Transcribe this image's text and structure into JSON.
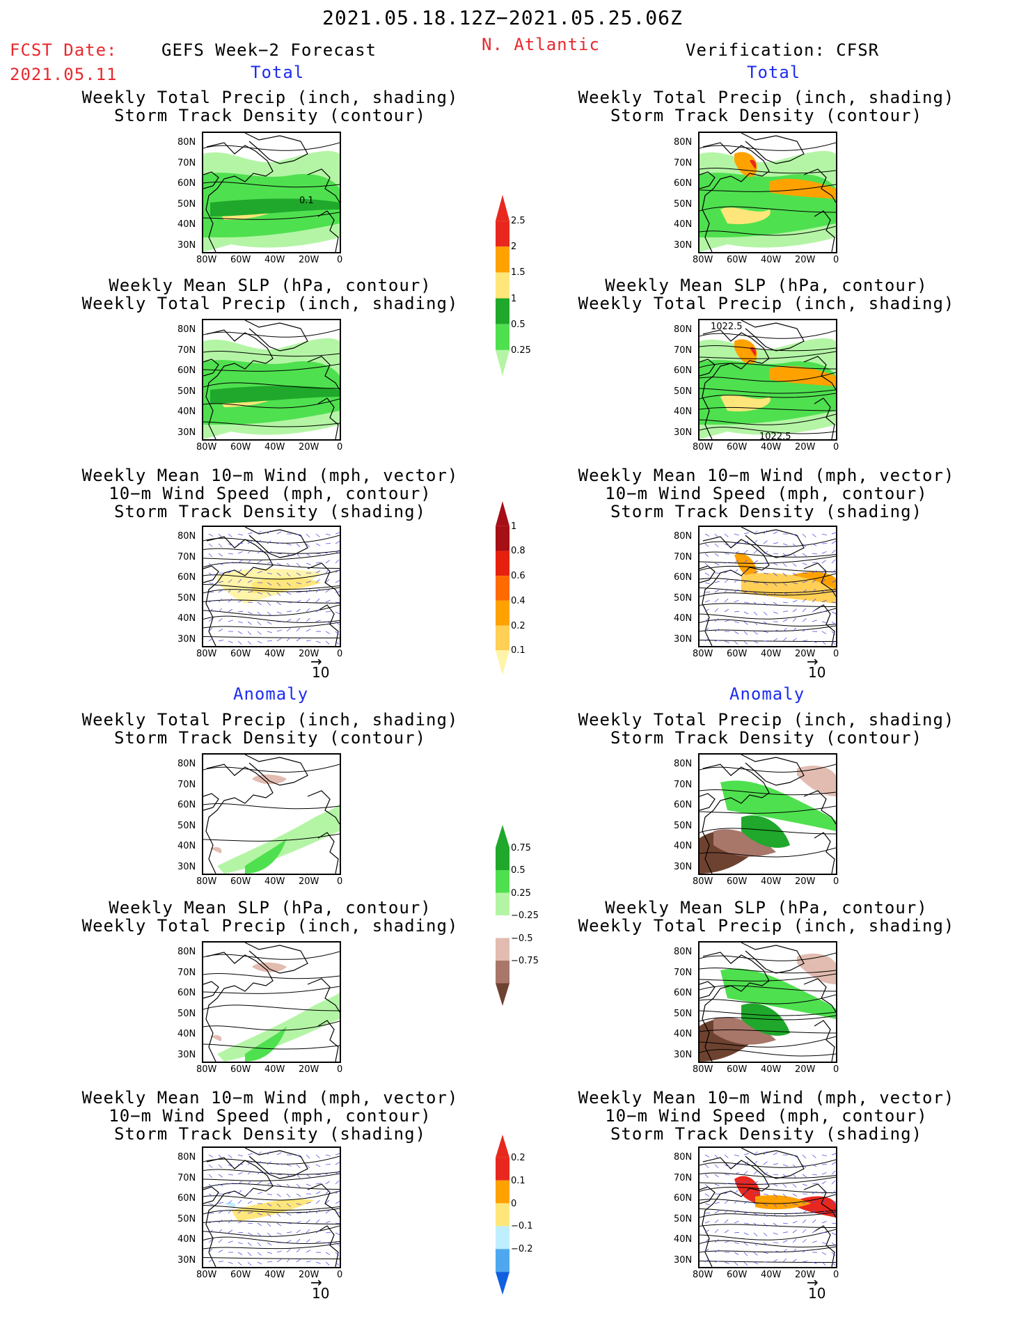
{
  "header": {
    "date_range": "2021.05.18.12Z−2021.05.25.06Z",
    "fcst_label": "FCST Date:",
    "fcst_date": "2021.05.11",
    "left_title": "GEFS Week−2 Forecast",
    "region": "N. Atlantic",
    "right_title": "Verification: CFSR"
  },
  "sections": {
    "total": "Total",
    "anomaly": "Anomaly"
  },
  "panel_titles": {
    "precip_track": [
      "Weekly Total Precip (inch, shading)",
      "Storm Track Density (contour)"
    ],
    "slp_precip": [
      "Weekly Mean SLP (hPa, contour)",
      "Weekly Total Precip (inch, shading)"
    ],
    "wind_track": [
      "Weekly Mean 10−m Wind (mph, vector)",
      "10−m Wind Speed (mph, contour)",
      "Storm Track Density (shading)"
    ]
  },
  "axes": {
    "lat_ticks": [
      "80N",
      "70N",
      "60N",
      "50N",
      "40N",
      "30N"
    ],
    "lon_ticks": [
      "80W",
      "60W",
      "40W",
      "20W",
      "0"
    ]
  },
  "map_labels": {
    "fcst_track_contour": "0.1",
    "cfsr_slp_top": "1022.5",
    "cfsr_slp_bottom": "1022.5"
  },
  "vector_reference": "10",
  "colorbars": {
    "precip_total": {
      "labels": [
        "2.5",
        "2",
        "1.5",
        "1",
        "0.5",
        "0.25"
      ],
      "colors": [
        "#e8281e",
        "#ffa200",
        "#ffe67a",
        "#1fa82b",
        "#4fe04f",
        "#b4f5a5"
      ]
    },
    "track_total": {
      "labels": [
        "1",
        "0.8",
        "0.6",
        "0.4",
        "0.2",
        "0.1"
      ],
      "colors": [
        "#a50f15",
        "#e6200e",
        "#ff6a00",
        "#ffa200",
        "#ffcf56",
        "#fff4a8"
      ]
    },
    "precip_anom": {
      "labels": [
        "0.75",
        "0.5",
        "0.25",
        "−0.25",
        "−0.5",
        "−0.75"
      ],
      "colors": [
        "#1fa82b",
        "#4fe04f",
        "#b4f5a5",
        "#ffffff",
        "#e2bcb0",
        "#a8776a",
        "#6e4230"
      ]
    },
    "track_anom": {
      "labels": [
        "0.2",
        "0.1",
        "0",
        "−0.1",
        "−0.2"
      ],
      "colors": [
        "#e8281e",
        "#ffa200",
        "#ffe67a",
        "#bfefff",
        "#4fa8ef",
        "#1060e0"
      ]
    }
  }
}
